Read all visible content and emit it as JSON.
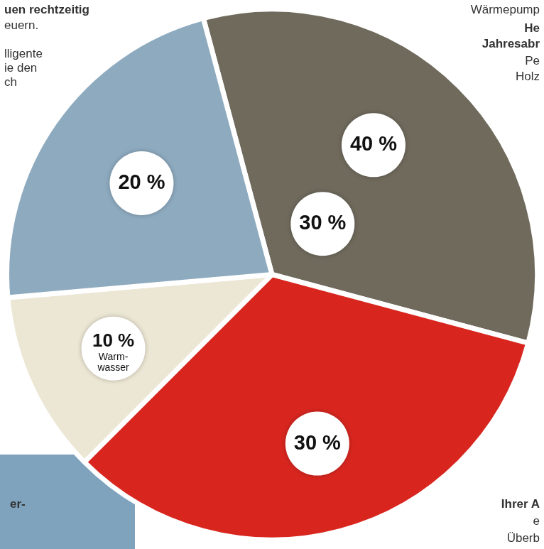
{
  "chart_data": {
    "type": "pie",
    "categories": [
      null,
      null,
      "Warm-wasser",
      null
    ],
    "values": [
      30,
      30,
      10,
      20
    ],
    "value_labels": [
      "30 %",
      "30 %",
      "10 %",
      "20 %"
    ],
    "alt_values": [
      40,
      null,
      null,
      null
    ],
    "alt_value_labels": [
      "40 %",
      null,
      null,
      null
    ],
    "colors": [
      "#6f6a5c",
      "#d8261f",
      "#ece6d4",
      "#8eaabf"
    ],
    "data_labels": true,
    "annotations": [
      "uen rechtzeitig",
      "euern.",
      "lligente",
      "ie den",
      "ch",
      "Wärmepump",
      "He",
      "Jahresabr",
      "Pe",
      "Holz",
      "er-",
      "Ihrer A",
      "e",
      "Überb"
    ]
  }
}
